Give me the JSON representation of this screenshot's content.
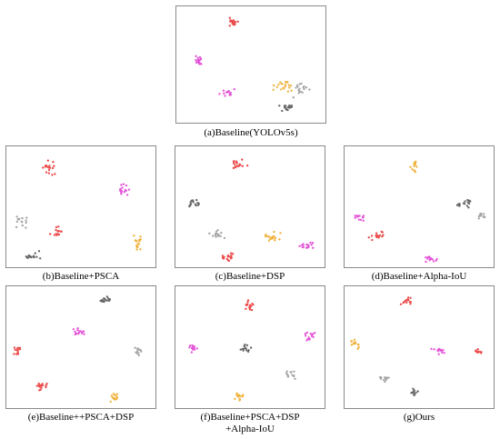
{
  "colors": {
    "red": "#ec4b4b",
    "pink": "#e455d8",
    "gray": "#666666",
    "silver": "#a6a6a6",
    "orange": "#f0b23e",
    "frame": "#8a8a8a"
  },
  "chart_data": [
    {
      "type": "scatter",
      "subtype": "t-SNE embedding",
      "caption": "(a)Baseline(YOLOv5s)",
      "grid": false,
      "legend": "none",
      "clusters": [
        {
          "color_key": "red",
          "center": [
            0.38,
            0.13
          ],
          "spread": [
            0.07,
            0.05
          ],
          "n": 20
        },
        {
          "color_key": "pink",
          "center": [
            0.15,
            0.47
          ],
          "spread": [
            0.05,
            0.07
          ],
          "n": 16
        },
        {
          "color_key": "pink",
          "center": [
            0.34,
            0.74
          ],
          "spread": [
            0.08,
            0.04
          ],
          "n": 14
        },
        {
          "color_key": "orange",
          "center": [
            0.72,
            0.69
          ],
          "spread": [
            0.09,
            0.06
          ],
          "n": 20
        },
        {
          "color_key": "silver",
          "center": [
            0.83,
            0.72
          ],
          "spread": [
            0.07,
            0.1
          ],
          "n": 18
        },
        {
          "color_key": "gray",
          "center": [
            0.75,
            0.85
          ],
          "spread": [
            0.09,
            0.06
          ],
          "n": 18
        }
      ]
    },
    {
      "type": "scatter",
      "subtype": "t-SNE embedding",
      "caption": "(b)Baseline+PSCA",
      "grid": false,
      "legend": "none",
      "clusters": [
        {
          "color_key": "red",
          "center": [
            0.28,
            0.19
          ],
          "spread": [
            0.06,
            0.09
          ],
          "n": 18
        },
        {
          "color_key": "pink",
          "center": [
            0.79,
            0.37
          ],
          "spread": [
            0.07,
            0.06
          ],
          "n": 16
        },
        {
          "color_key": "silver",
          "center": [
            0.09,
            0.63
          ],
          "spread": [
            0.06,
            0.07
          ],
          "n": 14
        },
        {
          "color_key": "red",
          "center": [
            0.34,
            0.71
          ],
          "spread": [
            0.06,
            0.08
          ],
          "n": 16
        },
        {
          "color_key": "orange",
          "center": [
            0.88,
            0.8
          ],
          "spread": [
            0.04,
            0.1
          ],
          "n": 16
        },
        {
          "color_key": "gray",
          "center": [
            0.18,
            0.91
          ],
          "spread": [
            0.08,
            0.05
          ],
          "n": 16
        }
      ]
    },
    {
      "type": "scatter",
      "subtype": "t-SNE embedding",
      "caption": "(c)Baseline+DSP",
      "grid": false,
      "legend": "none",
      "clusters": [
        {
          "color_key": "red",
          "center": [
            0.42,
            0.15
          ],
          "spread": [
            0.08,
            0.05
          ],
          "n": 18
        },
        {
          "color_key": "gray",
          "center": [
            0.12,
            0.47
          ],
          "spread": [
            0.06,
            0.07
          ],
          "n": 16
        },
        {
          "color_key": "silver",
          "center": [
            0.28,
            0.73
          ],
          "spread": [
            0.06,
            0.06
          ],
          "n": 14
        },
        {
          "color_key": "orange",
          "center": [
            0.66,
            0.75
          ],
          "spread": [
            0.08,
            0.06
          ],
          "n": 16
        },
        {
          "color_key": "pink",
          "center": [
            0.88,
            0.82
          ],
          "spread": [
            0.07,
            0.05
          ],
          "n": 16
        },
        {
          "color_key": "red",
          "center": [
            0.36,
            0.92
          ],
          "spread": [
            0.07,
            0.05
          ],
          "n": 16
        }
      ]
    },
    {
      "type": "scatter",
      "subtype": "t-SNE embedding",
      "caption": "(d)Baseline+Alpha-IoU",
      "grid": false,
      "legend": "none",
      "clusters": [
        {
          "color_key": "orange",
          "center": [
            0.46,
            0.16
          ],
          "spread": [
            0.04,
            0.07
          ],
          "n": 14
        },
        {
          "color_key": "gray",
          "center": [
            0.82,
            0.47
          ],
          "spread": [
            0.08,
            0.05
          ],
          "n": 16
        },
        {
          "color_key": "silver",
          "center": [
            0.92,
            0.58
          ],
          "spread": [
            0.05,
            0.04
          ],
          "n": 12
        },
        {
          "color_key": "pink",
          "center": [
            0.1,
            0.58
          ],
          "spread": [
            0.05,
            0.05
          ],
          "n": 14
        },
        {
          "color_key": "red",
          "center": [
            0.22,
            0.74
          ],
          "spread": [
            0.07,
            0.04
          ],
          "n": 16
        },
        {
          "color_key": "pink",
          "center": [
            0.58,
            0.93
          ],
          "spread": [
            0.07,
            0.04
          ],
          "n": 14
        }
      ]
    },
    {
      "type": "scatter",
      "subtype": "t-SNE embedding",
      "caption": "(e)Baseline++PSCA+DSP",
      "grid": false,
      "legend": "none",
      "clusters": [
        {
          "color_key": "gray",
          "center": [
            0.66,
            0.11
          ],
          "spread": [
            0.06,
            0.04
          ],
          "n": 16
        },
        {
          "color_key": "pink",
          "center": [
            0.48,
            0.37
          ],
          "spread": [
            0.06,
            0.05
          ],
          "n": 16
        },
        {
          "color_key": "red",
          "center": [
            0.07,
            0.52
          ],
          "spread": [
            0.04,
            0.05
          ],
          "n": 14
        },
        {
          "color_key": "silver",
          "center": [
            0.88,
            0.53
          ],
          "spread": [
            0.05,
            0.05
          ],
          "n": 12
        },
        {
          "color_key": "red",
          "center": [
            0.23,
            0.82
          ],
          "spread": [
            0.05,
            0.05
          ],
          "n": 16
        },
        {
          "color_key": "orange",
          "center": [
            0.72,
            0.91
          ],
          "spread": [
            0.05,
            0.05
          ],
          "n": 14
        }
      ]
    },
    {
      "type": "scatter",
      "subtype": "t-SNE embedding",
      "caption": [
        "(f)Baseline+PSCA+DSP",
        "+Alpha-IoU"
      ],
      "grid": false,
      "legend": "none",
      "clusters": [
        {
          "color_key": "red",
          "center": [
            0.5,
            0.16
          ],
          "spread": [
            0.05,
            0.09
          ],
          "n": 16
        },
        {
          "color_key": "pink",
          "center": [
            0.9,
            0.41
          ],
          "spread": [
            0.06,
            0.05
          ],
          "n": 14
        },
        {
          "color_key": "pink",
          "center": [
            0.12,
            0.51
          ],
          "spread": [
            0.04,
            0.07
          ],
          "n": 14
        },
        {
          "color_key": "gray",
          "center": [
            0.47,
            0.51
          ],
          "spread": [
            0.06,
            0.05
          ],
          "n": 14
        },
        {
          "color_key": "silver",
          "center": [
            0.78,
            0.72
          ],
          "spread": [
            0.07,
            0.06
          ],
          "n": 12
        },
        {
          "color_key": "orange",
          "center": [
            0.43,
            0.9
          ],
          "spread": [
            0.05,
            0.05
          ],
          "n": 14
        }
      ]
    },
    {
      "type": "scatter",
      "subtype": "t-SNE embedding",
      "caption": "(g)Ours",
      "grid": false,
      "legend": "none",
      "clusters": [
        {
          "color_key": "red",
          "center": [
            0.42,
            0.12
          ],
          "spread": [
            0.05,
            0.05
          ],
          "n": 14
        },
        {
          "color_key": "orange",
          "center": [
            0.07,
            0.47
          ],
          "spread": [
            0.04,
            0.06
          ],
          "n": 12
        },
        {
          "color_key": "pink",
          "center": [
            0.63,
            0.53
          ],
          "spread": [
            0.06,
            0.04
          ],
          "n": 14
        },
        {
          "color_key": "red",
          "center": [
            0.9,
            0.53
          ],
          "spread": [
            0.05,
            0.04
          ],
          "n": 12
        },
        {
          "color_key": "silver",
          "center": [
            0.28,
            0.75
          ],
          "spread": [
            0.06,
            0.04
          ],
          "n": 12
        },
        {
          "color_key": "gray",
          "center": [
            0.46,
            0.88
          ],
          "spread": [
            0.04,
            0.05
          ],
          "n": 12
        }
      ]
    }
  ]
}
